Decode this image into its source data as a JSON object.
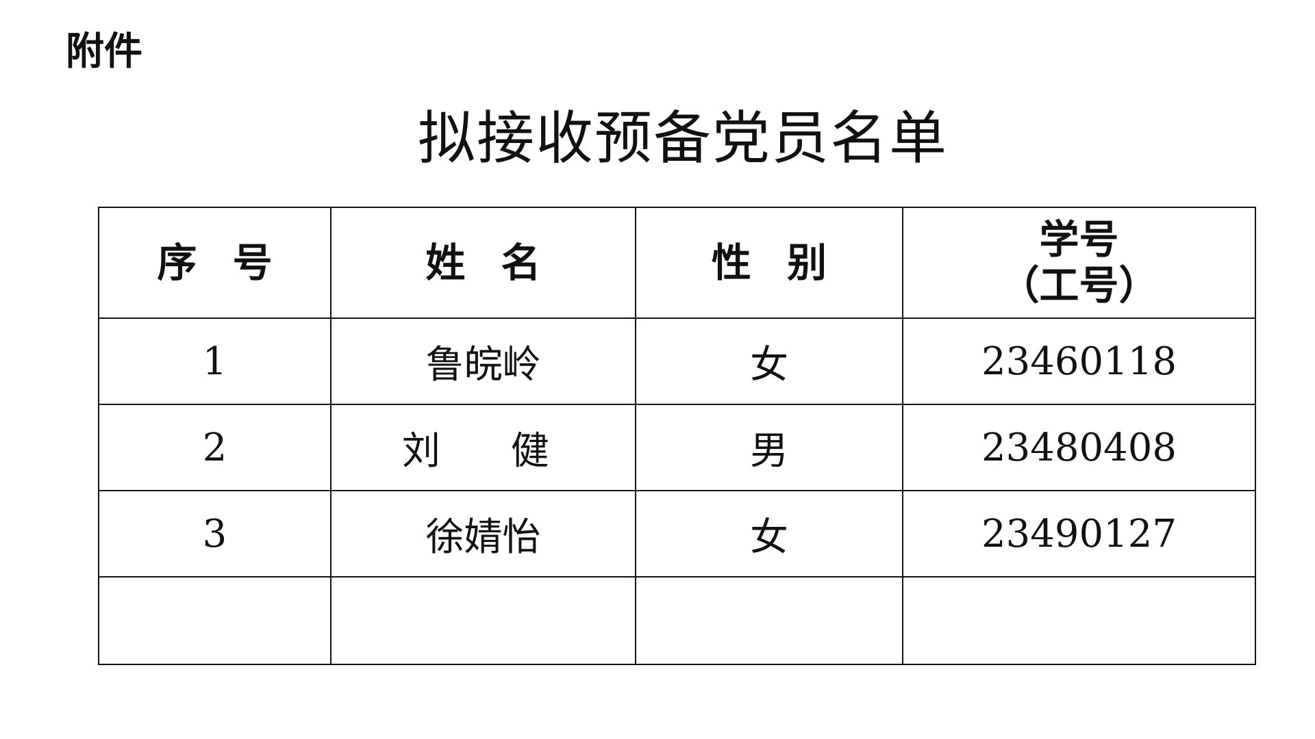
{
  "attachment_label": "附件",
  "title": "拟接收预备党员名单",
  "table": {
    "headers": [
      "序号",
      "姓名",
      "性别",
      "学号",
      "（工号）"
    ],
    "rows": [
      {
        "no": "1",
        "name": "鲁皖岭",
        "gender": "女",
        "id": "23460118"
      },
      {
        "no": "2",
        "name": "刘  健",
        "gender": "男",
        "id": "23480408"
      },
      {
        "no": "3",
        "name": "徐婧怡",
        "gender": "女",
        "id": "23490127"
      },
      {
        "no": "",
        "name": "",
        "gender": "",
        "id": ""
      }
    ]
  }
}
